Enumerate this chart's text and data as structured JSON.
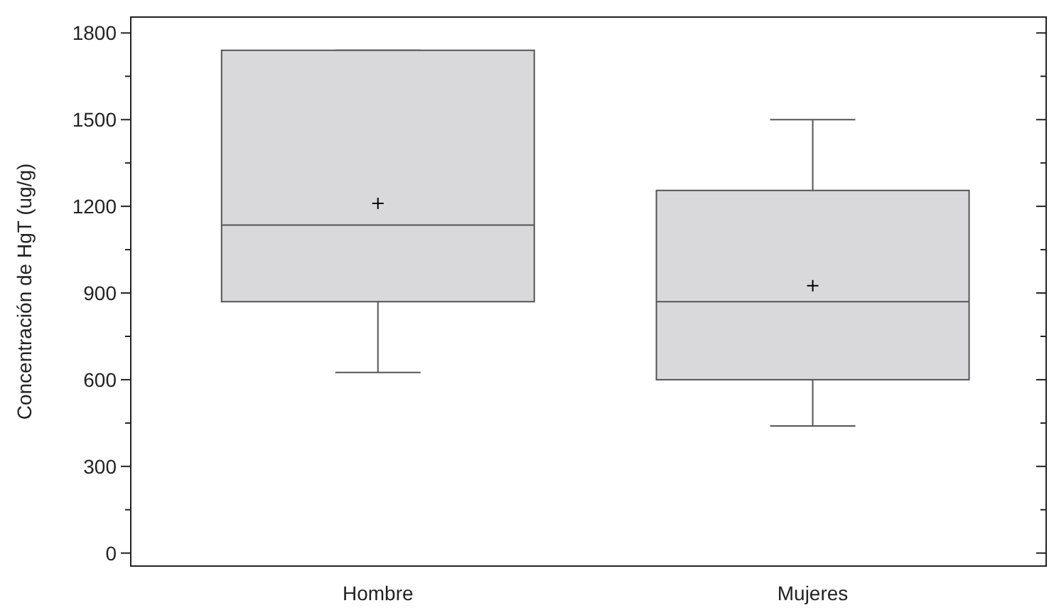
{
  "chart_data": {
    "type": "box",
    "ylabel": "Concentración de HgT (ug/g)",
    "categories": [
      "Hombre",
      "Mujeres"
    ],
    "boxes": [
      {
        "low": 625,
        "q1": 870,
        "median": 1135,
        "q3": 1740,
        "high": 1740,
        "mean": 1210
      },
      {
        "low": 440,
        "q1": 600,
        "median": 870,
        "q3": 1255,
        "high": 1500,
        "mean": 925
      }
    ],
    "color": "#d9d9db",
    "ylim": [
      -45,
      1855
    ],
    "yticks": [
      0,
      {
        "value": 150,
        "label": null
      },
      300,
      {
        "value": 450,
        "label": null
      },
      600,
      {
        "value": 750,
        "label": null
      },
      900,
      {
        "value": 1050,
        "label": null
      },
      1200,
      {
        "value": 1350,
        "label": null
      },
      1500,
      {
        "value": 1650,
        "label": null
      },
      1800
    ],
    "grid": false
  }
}
